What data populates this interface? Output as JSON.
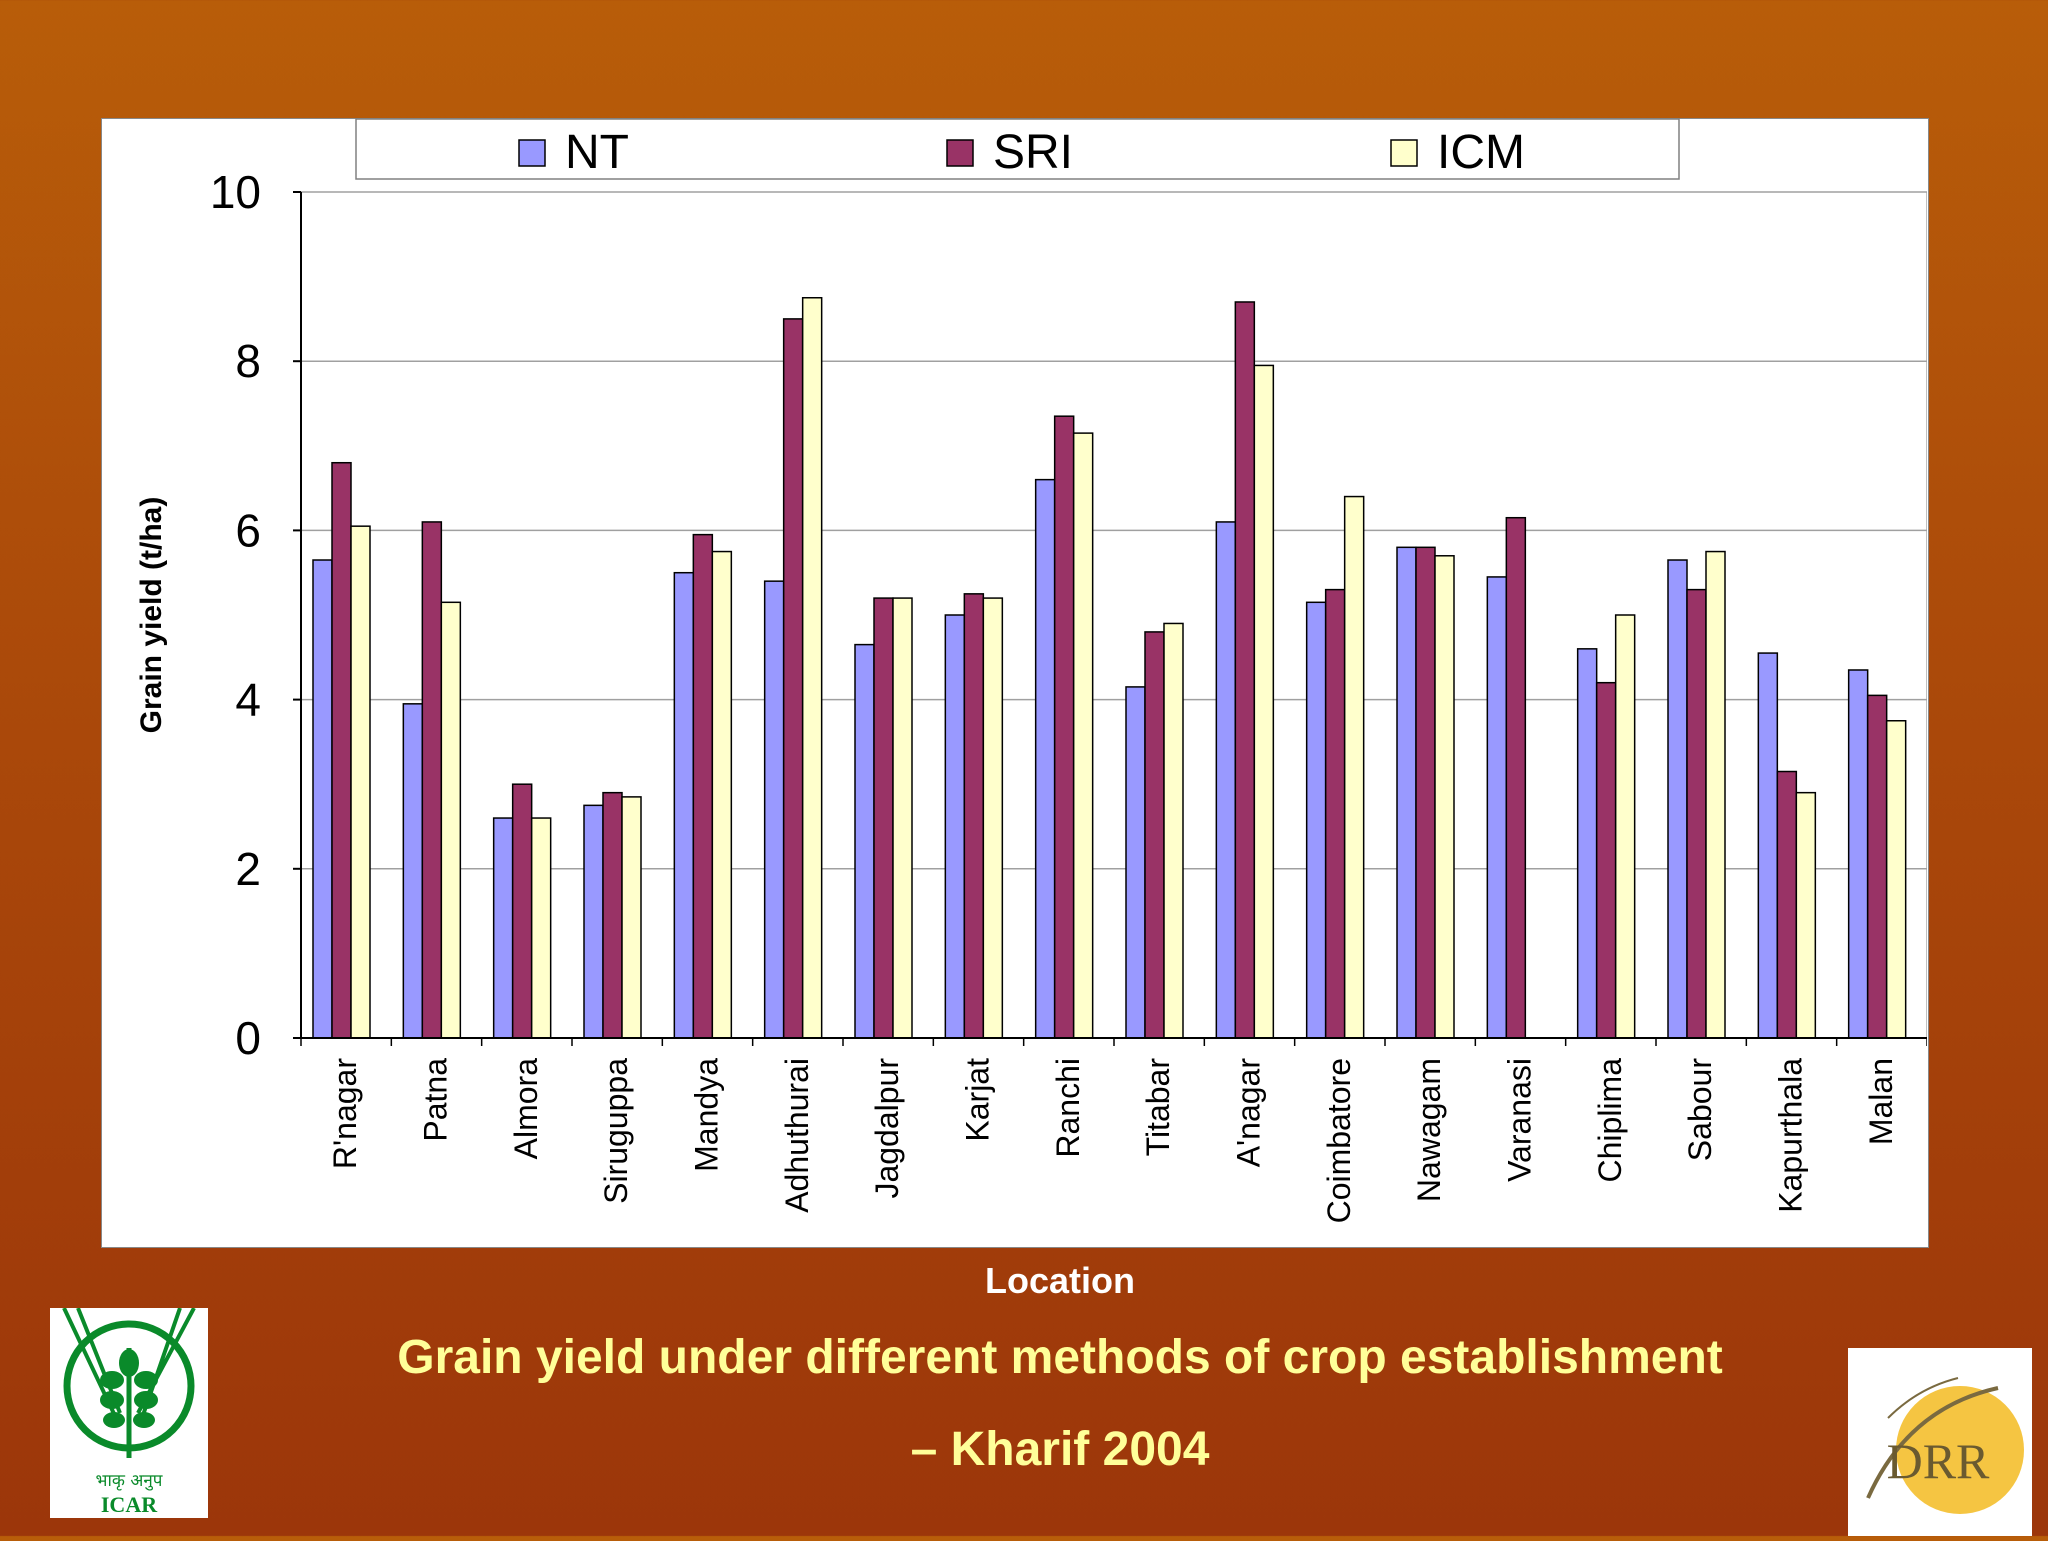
{
  "chart_data": {
    "type": "bar",
    "title": "Grain yield under different methods of crop establishment",
    "subtitle": "– Kharif 2004",
    "xlabel": "Location",
    "ylabel": "Grain yield (t/ha)",
    "ylim": [
      0,
      10
    ],
    "yticks": [
      "0",
      "2",
      "4",
      "6",
      "8",
      "10"
    ],
    "grid": true,
    "legend": "top",
    "categories": [
      "R'nagar",
      "Patna",
      "Almora",
      "Siruguppa",
      "Mandya",
      "Adhuthurai",
      "Jagdalpur",
      "Karjat",
      "Ranchi",
      "Titabar",
      "A'nagar",
      "Coimbatore",
      "Nawagam",
      "Varanasi",
      "Chiplima",
      "Sabour",
      "Kapurthala",
      "Malan"
    ],
    "series": [
      {
        "name": "NT",
        "color": "#9999ff",
        "values": [
          5.65,
          3.95,
          2.6,
          2.75,
          5.5,
          5.4,
          4.65,
          5.0,
          6.6,
          4.15,
          6.1,
          5.15,
          5.8,
          5.45,
          4.6,
          5.65,
          4.55,
          4.35
        ]
      },
      {
        "name": "SRI",
        "color": "#993366",
        "values": [
          6.8,
          6.1,
          3.0,
          2.9,
          5.95,
          8.5,
          5.2,
          5.25,
          7.35,
          4.8,
          8.7,
          5.3,
          5.8,
          6.15,
          4.2,
          5.3,
          3.15,
          4.05
        ]
      },
      {
        "name": "ICM",
        "color": "#ffffcc",
        "values": [
          6.05,
          5.15,
          2.6,
          2.85,
          5.75,
          8.75,
          5.2,
          5.2,
          7.15,
          4.9,
          7.95,
          6.4,
          5.7,
          null,
          5.0,
          5.75,
          2.9,
          3.75
        ]
      }
    ]
  },
  "logos": {
    "icar": {
      "text_hindi": "भाकृ अनुप",
      "text": "ICAR",
      "color": "#0a8a2a"
    },
    "drr": {
      "text": "DRR",
      "color": "#e8a020"
    }
  }
}
